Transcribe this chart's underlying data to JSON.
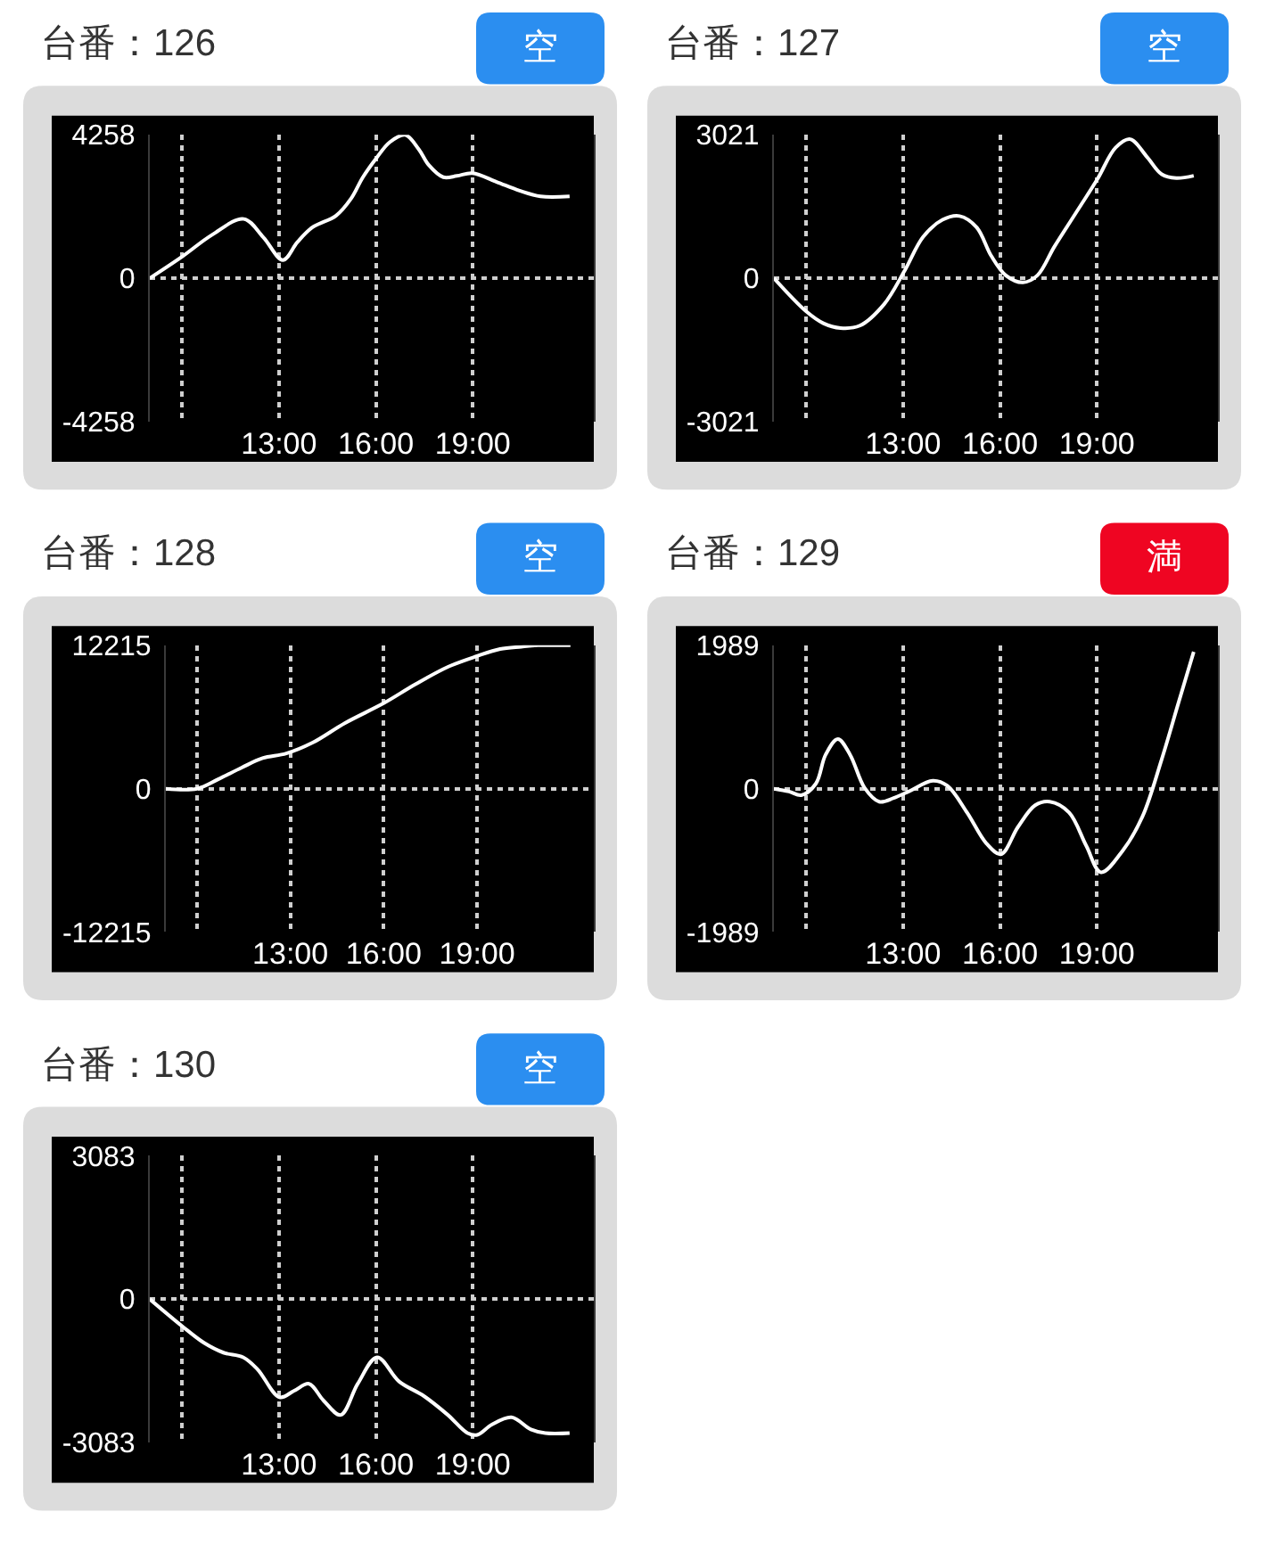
{
  "chart_data": [
    {
      "type": "line",
      "title": "台番：126",
      "annotations": [
        "空"
      ],
      "color": "#ffffff",
      "grid": true,
      "x": [
        9.0,
        10.0,
        10.93,
        11.91,
        12.52,
        13.12,
        13.57,
        14.02,
        14.77,
        15.23,
        15.6,
        16.02,
        16.43,
        16.91,
        17.33,
        17.64,
        18.09,
        18.51,
        18.99,
        19.74,
        20.45,
        21.1,
        22.0
      ],
      "values": [
        0,
        640,
        1290,
        1760,
        1210,
        540,
        1070,
        1500,
        1860,
        2360,
        3000,
        3570,
        4040,
        4258,
        3830,
        3360,
        3000,
        3040,
        3120,
        2860,
        2600,
        2430,
        2430
      ],
      "xlim": [
        9,
        22.75
      ],
      "xticks": [
        {
          "value": 10,
          "label": null
        },
        {
          "value": 13,
          "label": "13:00"
        },
        {
          "value": 16,
          "label": "16:00"
        },
        {
          "value": 19,
          "label": "19:00"
        }
      ],
      "ylim": [
        -4258,
        4258
      ],
      "yticks": [
        -4258,
        0,
        4258
      ]
    },
    {
      "type": "line",
      "title": "台番：127",
      "annotations": [
        "空"
      ],
      "color": "#ffffff",
      "grid": true,
      "x": [
        9.0,
        10.0,
        10.53,
        11.06,
        11.66,
        12.41,
        13.05,
        13.62,
        14.22,
        14.75,
        15.28,
        15.73,
        16.18,
        16.71,
        17.16,
        17.69,
        18.45,
        19.02,
        19.58,
        20.03,
        20.56,
        21.01,
        21.46,
        22.0
      ],
      "values": [
        0,
        -700,
        -950,
        -1050,
        -1000,
        -550,
        160,
        870,
        1230,
        1310,
        1070,
        470,
        60,
        -90,
        60,
        670,
        1480,
        2090,
        2750,
        2930,
        2550,
        2190,
        2110,
        2160
      ],
      "xlim": [
        9,
        22.75
      ],
      "xticks": [
        {
          "value": 10,
          "label": null
        },
        {
          "value": 13,
          "label": "13:00"
        },
        {
          "value": 16,
          "label": "16:00"
        },
        {
          "value": 19,
          "label": "19:00"
        }
      ],
      "ylim": [
        -3021,
        3021
      ],
      "yticks": [
        -3021,
        0,
        3021
      ]
    },
    {
      "type": "line",
      "title": "台番：128",
      "annotations": [
        "空"
      ],
      "color": "#ffffff",
      "grid": true,
      "x": [
        9.0,
        10.0,
        10.68,
        11.44,
        12.11,
        12.87,
        13.7,
        14.76,
        16.01,
        17.02,
        18.08,
        19.0,
        19.74,
        20.42,
        20.95,
        22.0
      ],
      "values": [
        0,
        0,
        800,
        1800,
        2600,
        3000,
        3900,
        5600,
        7300,
        8900,
        10400,
        11300,
        11900,
        12100,
        12215,
        12215
      ],
      "xlim": [
        9,
        22.75
      ],
      "xticks": [
        {
          "value": 10,
          "label": null
        },
        {
          "value": 13,
          "label": "13:00"
        },
        {
          "value": 16,
          "label": "16:00"
        },
        {
          "value": 19,
          "label": "19:00"
        }
      ],
      "ylim": [
        -12215,
        12215
      ],
      "yticks": [
        -12215,
        0,
        12215
      ]
    },
    {
      "type": "line",
      "title": "台番：129",
      "annotations": [
        "満"
      ],
      "color": "#ffffff",
      "grid": true,
      "x": [
        9.0,
        9.47,
        9.85,
        10.3,
        10.6,
        10.98,
        11.36,
        11.81,
        12.26,
        12.71,
        13.17,
        13.92,
        14.37,
        14.98,
        15.58,
        16.03,
        16.56,
        17.09,
        17.54,
        18.14,
        18.67,
        19.13,
        19.8,
        20.41,
        21.01,
        21.54,
        22.0
      ],
      "values": [
        0,
        -40,
        -90,
        70,
        470,
        690,
        470,
        10,
        -180,
        -130,
        -40,
        110,
        40,
        -330,
        -760,
        -910,
        -530,
        -230,
        -180,
        -330,
        -790,
        -1160,
        -860,
        -390,
        410,
        1210,
        1900
      ],
      "xlim": [
        9,
        22.75
      ],
      "xticks": [
        {
          "value": 10,
          "label": null
        },
        {
          "value": 13,
          "label": "13:00"
        },
        {
          "value": 16,
          "label": "16:00"
        },
        {
          "value": 19,
          "label": "19:00"
        }
      ],
      "ylim": [
        -1989,
        1989
      ],
      "yticks": [
        -1989,
        0,
        1989
      ]
    },
    {
      "type": "line",
      "title": "台番：130",
      "annotations": [
        "空"
      ],
      "color": "#ffffff",
      "grid": true,
      "x": [
        9.0,
        10.0,
        10.68,
        11.28,
        11.89,
        12.34,
        13.02,
        13.47,
        13.93,
        14.38,
        14.91,
        15.44,
        16.04,
        16.72,
        17.48,
        18.23,
        18.84,
        19.14,
        19.59,
        20.2,
        20.8,
        21.25,
        22.0
      ],
      "values": [
        0,
        -580,
        -940,
        -1150,
        -1250,
        -1510,
        -2110,
        -1970,
        -1820,
        -2180,
        -2490,
        -1820,
        -1250,
        -1770,
        -2080,
        -2490,
        -2880,
        -2920,
        -2700,
        -2540,
        -2800,
        -2880,
        -2880
      ],
      "xlim": [
        9,
        22.75
      ],
      "xticks": [
        {
          "value": 10,
          "label": null
        },
        {
          "value": 13,
          "label": "13:00"
        },
        {
          "value": 16,
          "label": "16:00"
        },
        {
          "value": 19,
          "label": "19:00"
        }
      ],
      "ylim": [
        -3083,
        3083
      ],
      "yticks": [
        -3083,
        0,
        3083
      ]
    }
  ]
}
